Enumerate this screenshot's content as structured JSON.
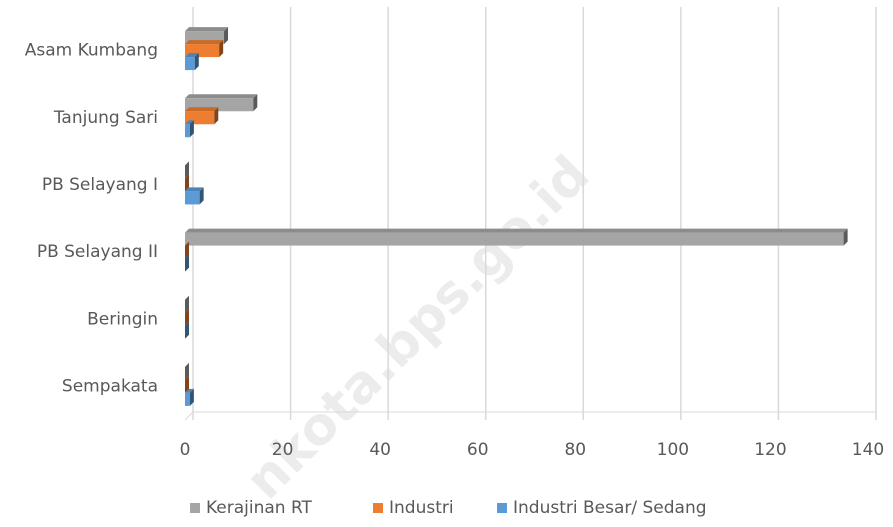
{
  "chart_data": {
    "type": "bar",
    "orientation": "horizontal",
    "categories": [
      "Asam Kumbang",
      "Tanjung Sari",
      "PB Selayang I",
      "PB Selayang II",
      "Beringin",
      "Sempakata"
    ],
    "series": [
      {
        "name": "Kerajinan RT",
        "color": "#a5a5a5",
        "values": [
          8,
          14,
          0,
          135,
          0,
          0
        ]
      },
      {
        "name": "Industri",
        "color": "#ed7d31",
        "values": [
          7,
          6,
          0,
          0,
          0,
          0
        ]
      },
      {
        "name": "Industri Besar/ Sedang",
        "color": "#5b9bd5",
        "values": [
          2,
          1,
          3,
          0,
          0,
          1
        ]
      }
    ],
    "xlim": [
      0,
      140
    ],
    "xticks": [
      0,
      20,
      40,
      60,
      80,
      100,
      120,
      140
    ],
    "grid": true,
    "legend": "bottom",
    "watermark": "nkota.bps.go.id"
  }
}
